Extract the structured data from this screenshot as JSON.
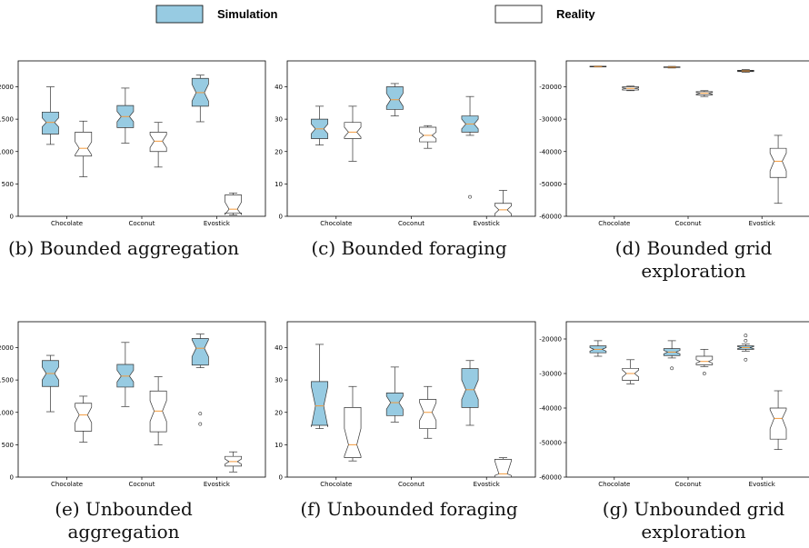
{
  "legend": {
    "simulation_label": "Simulation",
    "reality_label": "Reality",
    "simulation_color": "#97cbe2",
    "reality_color": "#ffffff"
  },
  "chart_data": [
    {
      "type": "boxplot",
      "caption": [
        "(b) Bounded aggregation"
      ],
      "categories": [
        "Chocolate",
        "Coconut",
        "Evostick"
      ],
      "yticks": [
        0,
        500,
        1000,
        1500,
        2000
      ],
      "ylim": [
        0,
        2400
      ],
      "series": [
        {
          "name": "Simulation",
          "boxes": [
            {
              "min": 1110,
              "q1": 1270,
              "median": 1450,
              "q3": 1610,
              "max": 2000,
              "notch": [
                1380,
                1520
              ]
            },
            {
              "min": 1130,
              "q1": 1370,
              "median": 1540,
              "q3": 1710,
              "max": 1980,
              "notch": [
                1460,
                1620
              ]
            },
            {
              "min": 1460,
              "q1": 1700,
              "median": 1910,
              "q3": 2130,
              "max": 2180,
              "notch": [
                1780,
                2040
              ]
            }
          ]
        },
        {
          "name": "Reality",
          "boxes": [
            {
              "min": 610,
              "q1": 930,
              "median": 1050,
              "q3": 1300,
              "max": 1470,
              "notch": [
                950,
                1150
              ]
            },
            {
              "min": 760,
              "q1": 1000,
              "median": 1160,
              "q3": 1300,
              "max": 1450,
              "notch": [
                1060,
                1260
              ]
            },
            {
              "min": 20,
              "q1": 50,
              "median": 110,
              "q3": 330,
              "max": 360,
              "notch": [
                30,
                220
              ]
            }
          ]
        }
      ],
      "fliers": []
    },
    {
      "type": "boxplot",
      "caption": [
        "(c) Bounded foraging"
      ],
      "categories": [
        "Chocolate",
        "Coconut",
        "Evostick"
      ],
      "yticks": [
        0,
        10,
        20,
        30,
        40
      ],
      "ylim": [
        0,
        48
      ],
      "series": [
        {
          "name": "Simulation",
          "boxes": [
            {
              "min": 22,
              "q1": 24,
              "median": 27,
              "q3": 30,
              "max": 34,
              "notch": [
                25.5,
                28.5
              ]
            },
            {
              "min": 31,
              "q1": 33,
              "median": 36,
              "q3": 40,
              "max": 41,
              "notch": [
                34,
                38
              ]
            },
            {
              "min": 25,
              "q1": 26,
              "median": 28.5,
              "q3": 31,
              "max": 37,
              "notch": [
                27,
                30
              ]
            }
          ]
        },
        {
          "name": "Reality",
          "boxes": [
            {
              "min": 17,
              "q1": 24,
              "median": 26,
              "q3": 29,
              "max": 34,
              "notch": [
                24.5,
                27.5
              ]
            },
            {
              "min": 21,
              "q1": 23,
              "median": 25,
              "q3": 27.5,
              "max": 28,
              "notch": [
                24,
                26
              ]
            },
            {
              "min": 0,
              "q1": 0,
              "median": 2,
              "q3": 4,
              "max": 8,
              "notch": [
                0.8,
                3.2
              ]
            }
          ]
        }
      ],
      "fliers": [
        {
          "category": 2,
          "series": 0,
          "value": 6
        }
      ]
    },
    {
      "type": "boxplot",
      "caption": [
        "(d) Bounded grid",
        "exploration"
      ],
      "categories": [
        "Chocolate",
        "Coconut",
        "Evostick"
      ],
      "yticks": [
        -20000,
        -30000,
        -40000,
        -50000,
        -60000
      ],
      "ylim": [
        -60000,
        -12000
      ],
      "series": [
        {
          "name": "Simulation",
          "boxes": [
            {
              "min": -13900,
              "q1": -13850,
              "median": -13750,
              "q3": -13650,
              "max": -13600,
              "notch": [
                -13800,
                -13700
              ]
            },
            {
              "min": -14200,
              "q1": -14050,
              "median": -13950,
              "q3": -13850,
              "max": -13700,
              "notch": [
                -14000,
                -13900
              ]
            },
            {
              "min": -15500,
              "q1": -15300,
              "median": -15100,
              "q3": -14900,
              "max": -14700,
              "notch": [
                -15200,
                -15000
              ]
            }
          ]
        },
        {
          "name": "Reality",
          "boxes": [
            {
              "min": -21200,
              "q1": -21000,
              "median": -20500,
              "q3": -20000,
              "max": -19800,
              "notch": [
                -20700,
                -20300
              ]
            },
            {
              "min": -23000,
              "q1": -22500,
              "median": -22000,
              "q3": -21500,
              "max": -21200,
              "notch": [
                -22300,
                -21700
              ]
            },
            {
              "min": -56000,
              "q1": -48000,
              "median": -43000,
              "q3": -39000,
              "max": -35000,
              "notch": [
                -46000,
                -40500
              ]
            }
          ]
        }
      ],
      "fliers": []
    },
    {
      "type": "boxplot",
      "caption": [
        "(e) Unbounded",
        "aggregation"
      ],
      "categories": [
        "Chocolate",
        "Coconut",
        "Evostick"
      ],
      "yticks": [
        0,
        500,
        1000,
        1500,
        2000
      ],
      "ylim": [
        0,
        2400
      ],
      "series": [
        {
          "name": "Simulation",
          "boxes": [
            {
              "min": 1010,
              "q1": 1400,
              "median": 1600,
              "q3": 1800,
              "max": 1880,
              "notch": [
                1500,
                1700
              ]
            },
            {
              "min": 1090,
              "q1": 1390,
              "median": 1560,
              "q3": 1740,
              "max": 2080,
              "notch": [
                1470,
                1650
              ]
            },
            {
              "min": 1690,
              "q1": 1730,
              "median": 1990,
              "q3": 2140,
              "max": 2210,
              "notch": [
                1860,
                2120
              ]
            }
          ]
        },
        {
          "name": "Reality",
          "boxes": [
            {
              "min": 540,
              "q1": 710,
              "median": 960,
              "q3": 1140,
              "max": 1250,
              "notch": [
                840,
                1080
              ]
            },
            {
              "min": 500,
              "q1": 700,
              "median": 1020,
              "q3": 1330,
              "max": 1550,
              "notch": [
                860,
                1180
              ]
            },
            {
              "min": 80,
              "q1": 170,
              "median": 240,
              "q3": 320,
              "max": 390,
              "notch": [
                200,
                280
              ]
            }
          ]
        }
      ],
      "fliers": [
        {
          "category": 2,
          "series": 0,
          "value": 980
        },
        {
          "category": 2,
          "series": 0,
          "value": 820
        }
      ]
    },
    {
      "type": "boxplot",
      "caption": [
        "(f) Unbounded foraging"
      ],
      "categories": [
        "Chocolate",
        "Coconut",
        "Evostick"
      ],
      "yticks": [
        0,
        10,
        20,
        30,
        40
      ],
      "ylim": [
        0,
        48
      ],
      "series": [
        {
          "name": "Simulation",
          "boxes": [
            {
              "min": 15,
              "q1": 16,
              "median": 22,
              "q3": 29.5,
              "max": 41,
              "notch": [
                15.5,
                28
              ]
            },
            {
              "min": 17,
              "q1": 19,
              "median": 23,
              "q3": 26,
              "max": 34,
              "notch": [
                21,
                25
              ]
            },
            {
              "min": 16,
              "q1": 21.5,
              "median": 27,
              "q3": 33.5,
              "max": 36,
              "notch": [
                24,
                30
              ]
            }
          ]
        },
        {
          "name": "Reality",
          "boxes": [
            {
              "min": 5,
              "q1": 6,
              "median": 10,
              "q3": 21.5,
              "max": 28,
              "notch": [
                6.5,
                15
              ]
            },
            {
              "min": 12,
              "q1": 15,
              "median": 20,
              "q3": 24,
              "max": 28,
              "notch": [
                17.5,
                23
              ]
            },
            {
              "min": 0,
              "q1": 0,
              "median": 1,
              "q3": 5.5,
              "max": 6,
              "notch": [
                0.5,
                5
              ]
            }
          ]
        }
      ],
      "fliers": []
    },
    {
      "type": "boxplot",
      "caption": [
        "(g) Unbounded grid",
        "exploration"
      ],
      "categories": [
        "Chocolate",
        "Coconut",
        "Evostick"
      ],
      "yticks": [
        -20000,
        -30000,
        -40000,
        -50000,
        -60000
      ],
      "ylim": [
        -60000,
        -15000
      ],
      "series": [
        {
          "name": "Simulation",
          "boxes": [
            {
              "min": -25000,
              "q1": -24000,
              "median": -23000,
              "q3": -22000,
              "max": -20500,
              "notch": [
                -23500,
                -22500
              ]
            },
            {
              "min": -25500,
              "q1": -24800,
              "median": -23800,
              "q3": -22800,
              "max": -20500,
              "notch": [
                -24300,
                -23300
              ]
            },
            {
              "min": -23500,
              "q1": -23000,
              "median": -22500,
              "q3": -22000,
              "max": -21500,
              "notch": [
                -22800,
                -22200
              ]
            }
          ]
        },
        {
          "name": "Reality",
          "boxes": [
            {
              "min": -33000,
              "q1": -32000,
              "median": -30000,
              "q3": -28500,
              "max": -26000,
              "notch": [
                -31000,
                -29000
              ]
            },
            {
              "min": -28000,
              "q1": -27500,
              "median": -26500,
              "q3": -25000,
              "max": -23000,
              "notch": [
                -27000,
                -26000
              ]
            },
            {
              "min": -52000,
              "q1": -49000,
              "median": -43000,
              "q3": -40000,
              "max": -35000,
              "notch": [
                -46000,
                -40500
              ]
            }
          ]
        }
      ],
      "fliers": [
        {
          "category": 1,
          "series": 0,
          "value": -28500
        },
        {
          "category": 1,
          "series": 1,
          "value": -30000
        },
        {
          "category": 2,
          "series": 0,
          "value": -19000
        },
        {
          "category": 2,
          "series": 0,
          "value": -20500
        },
        {
          "category": 2,
          "series": 0,
          "value": -26000
        }
      ]
    }
  ]
}
